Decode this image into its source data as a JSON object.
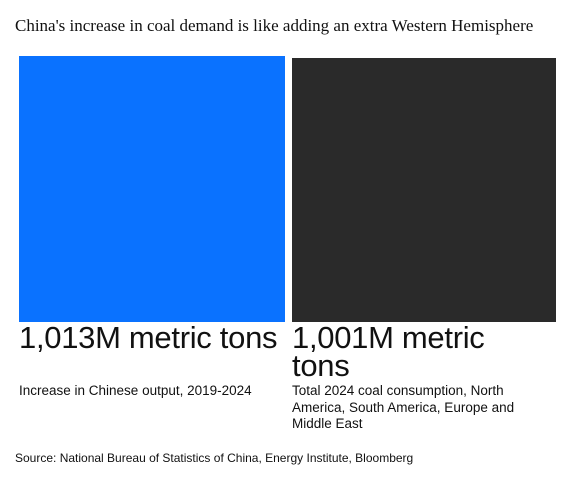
{
  "title": "China's increase in coal demand is like adding an extra Western Hemisphere",
  "source": "Source: National Bureau of Statistics of China, Energy Institute, Bloomberg",
  "chart_data": {
    "type": "bar",
    "categories": [
      "Increase in Chinese output, 2019-2024",
      "Total 2024 coal consumption, North America, South America, Europe and Middle East"
    ],
    "values": [
      1013,
      1001
    ],
    "value_labels": [
      "1,013M metric tons",
      "1,001M metric tons"
    ],
    "unit": "M metric tons",
    "colors": [
      "#0A72FF",
      "#2A2A2A"
    ],
    "encoding": "square-area",
    "legend": "none",
    "grid": false
  }
}
